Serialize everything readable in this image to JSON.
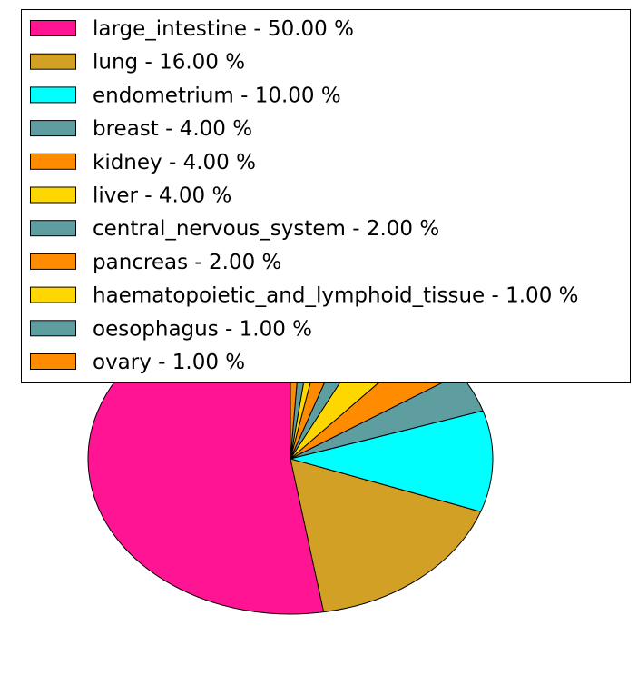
{
  "chart_data": {
    "type": "pie",
    "title": "",
    "legend_position": "top",
    "slices": [
      {
        "label": "large_intestine",
        "value": 50.0,
        "display": "large_intestine - 50.00 %",
        "color": "#FF1493"
      },
      {
        "label": "lung",
        "value": 16.0,
        "display": "lung - 16.00 %",
        "color": "#D2A024"
      },
      {
        "label": "endometrium",
        "value": 10.0,
        "display": "endometrium - 10.00 %",
        "color": "#00FFFF"
      },
      {
        "label": "breast",
        "value": 4.0,
        "display": "breast - 4.00 %",
        "color": "#5F9EA0"
      },
      {
        "label": "kidney",
        "value": 4.0,
        "display": "kidney - 4.00 %",
        "color": "#FF8C00"
      },
      {
        "label": "liver",
        "value": 4.0,
        "display": "liver - 4.00 %",
        "color": "#FFD700"
      },
      {
        "label": "central_nervous_system",
        "value": 2.0,
        "display": "central_nervous_system - 2.00 %",
        "color": "#5F9EA0"
      },
      {
        "label": "pancreas",
        "value": 2.0,
        "display": "pancreas - 2.00 %",
        "color": "#FF8C00"
      },
      {
        "label": "haematopoietic_and_lymphoid_tissue",
        "value": 1.0,
        "display": "haematopoietic_and_lymphoid_tissue - 1.00 %",
        "color": "#FFD700"
      },
      {
        "label": "oesophagus",
        "value": 1.0,
        "display": "oesophagus - 1.00 %",
        "color": "#5F9EA0"
      },
      {
        "label": "ovary",
        "value": 1.0,
        "display": "ovary - 1.00 %",
        "color": "#FF8C00"
      }
    ]
  }
}
